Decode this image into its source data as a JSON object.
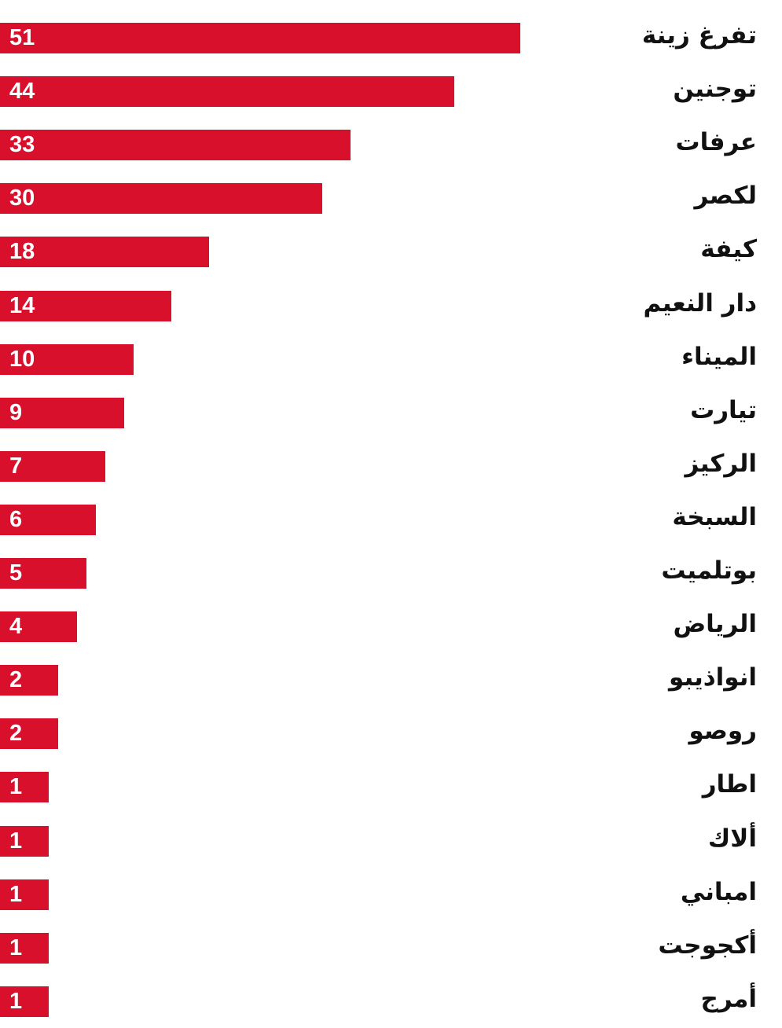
{
  "chart_data": {
    "type": "bar",
    "orientation": "horizontal",
    "categories": [
      "تفرغ زينة",
      "توجنين",
      "عرفات",
      "لكصر",
      "كيفة",
      "دار النعيم",
      "الميناء",
      "تيارت",
      "الركيز",
      "السبخة",
      "بوتلميت",
      "الرياض",
      "انواذيبو",
      "روصو",
      "اطار",
      "ألاك",
      "امباني",
      "أكجوجت",
      "أمرج"
    ],
    "values": [
      51,
      44,
      33,
      30,
      18,
      14,
      10,
      9,
      7,
      6,
      5,
      4,
      2,
      2,
      1,
      1,
      1,
      1,
      1
    ],
    "data_labels": true,
    "grid": false,
    "bar_color": "#d8102c"
  }
}
